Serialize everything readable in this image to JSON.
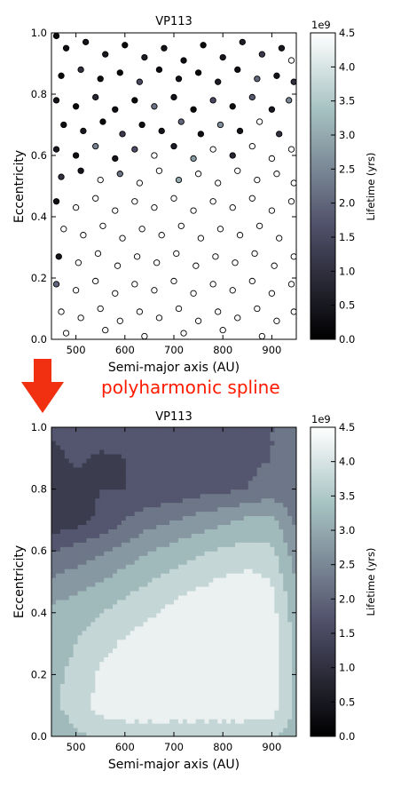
{
  "annotation": "polyharmonic spline",
  "colormap": {
    "name": "bone",
    "stops": [
      "#000000",
      "#51516b",
      "#a6c2c2",
      "#ffffff"
    ]
  },
  "arrow_color": "#f03010",
  "chart_data": [
    {
      "type": "scatter",
      "title": "VP113",
      "xlabel": "Semi-major axis (AU)",
      "ylabel": "Eccentricity",
      "xlim": [
        450,
        950
      ],
      "ylim": [
        0.0,
        1.0
      ],
      "xticks": [
        "500",
        "600",
        "700",
        "800",
        "900"
      ],
      "yticks": [
        "0.0",
        "0.2",
        "0.4",
        "0.6",
        "0.8",
        "1.0"
      ],
      "colorbar": {
        "label": "Lifetime (yrs)",
        "exponent": "1e9",
        "range": [
          0.0,
          4.5
        ],
        "ticks": [
          "0.0",
          "0.5",
          "1.0",
          "1.5",
          "2.0",
          "2.5",
          "3.0",
          "3.5",
          "4.0",
          "4.5"
        ]
      },
      "points": [
        {
          "x": 460,
          "y": 0.99,
          "c": 0.2
        },
        {
          "x": 480,
          "y": 0.95,
          "c": 0.3
        },
        {
          "x": 520,
          "y": 0.97,
          "c": 0.4
        },
        {
          "x": 560,
          "y": 0.93,
          "c": 0.5
        },
        {
          "x": 600,
          "y": 0.96,
          "c": 0.2
        },
        {
          "x": 640,
          "y": 0.92,
          "c": 0.6
        },
        {
          "x": 680,
          "y": 0.95,
          "c": 0.4
        },
        {
          "x": 720,
          "y": 0.91,
          "c": 0.3
        },
        {
          "x": 760,
          "y": 0.96,
          "c": 0.2
        },
        {
          "x": 800,
          "y": 0.92,
          "c": 0.5
        },
        {
          "x": 840,
          "y": 0.97,
          "c": 0.6
        },
        {
          "x": 880,
          "y": 0.93,
          "c": 1.2
        },
        {
          "x": 920,
          "y": 0.95,
          "c": 0.5
        },
        {
          "x": 940,
          "y": 0.91,
          "c": 4.5
        },
        {
          "x": 470,
          "y": 0.86,
          "c": 0.2
        },
        {
          "x": 510,
          "y": 0.88,
          "c": 1.0
        },
        {
          "x": 550,
          "y": 0.85,
          "c": 0.3
        },
        {
          "x": 590,
          "y": 0.87,
          "c": 0.2
        },
        {
          "x": 630,
          "y": 0.84,
          "c": 1.5
        },
        {
          "x": 670,
          "y": 0.88,
          "c": 0.3
        },
        {
          "x": 710,
          "y": 0.85,
          "c": 0.4
        },
        {
          "x": 750,
          "y": 0.87,
          "c": 0.2
        },
        {
          "x": 790,
          "y": 0.84,
          "c": 0.6
        },
        {
          "x": 830,
          "y": 0.88,
          "c": 0.3
        },
        {
          "x": 870,
          "y": 0.85,
          "c": 2.0
        },
        {
          "x": 910,
          "y": 0.86,
          "c": 0.4
        },
        {
          "x": 945,
          "y": 0.84,
          "c": 1.0
        },
        {
          "x": 460,
          "y": 0.78,
          "c": 0.4
        },
        {
          "x": 500,
          "y": 0.76,
          "c": 0.2
        },
        {
          "x": 540,
          "y": 0.79,
          "c": 0.8
        },
        {
          "x": 580,
          "y": 0.75,
          "c": 0.3
        },
        {
          "x": 620,
          "y": 0.78,
          "c": 0.2
        },
        {
          "x": 660,
          "y": 0.76,
          "c": 2.2
        },
        {
          "x": 700,
          "y": 0.79,
          "c": 0.4
        },
        {
          "x": 740,
          "y": 0.75,
          "c": 0.2
        },
        {
          "x": 780,
          "y": 0.78,
          "c": 1.5
        },
        {
          "x": 820,
          "y": 0.76,
          "c": 0.3
        },
        {
          "x": 860,
          "y": 0.79,
          "c": 1.8
        },
        {
          "x": 900,
          "y": 0.75,
          "c": 0.5
        },
        {
          "x": 935,
          "y": 0.78,
          "c": 2.5
        },
        {
          "x": 475,
          "y": 0.7,
          "c": 0.3
        },
        {
          "x": 515,
          "y": 0.68,
          "c": 0.5
        },
        {
          "x": 555,
          "y": 0.71,
          "c": 0.2
        },
        {
          "x": 595,
          "y": 0.67,
          "c": 1.2
        },
        {
          "x": 635,
          "y": 0.7,
          "c": 0.3
        },
        {
          "x": 675,
          "y": 0.68,
          "c": 0.4
        },
        {
          "x": 715,
          "y": 0.71,
          "c": 2.0
        },
        {
          "x": 755,
          "y": 0.67,
          "c": 0.3
        },
        {
          "x": 795,
          "y": 0.7,
          "c": 2.6
        },
        {
          "x": 835,
          "y": 0.68,
          "c": 0.4
        },
        {
          "x": 875,
          "y": 0.71,
          "c": 4.5
        },
        {
          "x": 915,
          "y": 0.67,
          "c": 1.0
        },
        {
          "x": 460,
          "y": 0.62,
          "c": 0.5
        },
        {
          "x": 500,
          "y": 0.6,
          "c": 0.3
        },
        {
          "x": 540,
          "y": 0.63,
          "c": 2.4
        },
        {
          "x": 580,
          "y": 0.59,
          "c": 0.4
        },
        {
          "x": 620,
          "y": 0.62,
          "c": 1.6
        },
        {
          "x": 660,
          "y": 0.6,
          "c": 4.5
        },
        {
          "x": 700,
          "y": 0.63,
          "c": 0.6
        },
        {
          "x": 740,
          "y": 0.59,
          "c": 2.8
        },
        {
          "x": 780,
          "y": 0.62,
          "c": 4.5
        },
        {
          "x": 820,
          "y": 0.6,
          "c": 0.8
        },
        {
          "x": 860,
          "y": 0.63,
          "c": 4.5
        },
        {
          "x": 900,
          "y": 0.59,
          "c": 4.5
        },
        {
          "x": 940,
          "y": 0.62,
          "c": 4.5
        },
        {
          "x": 470,
          "y": 0.53,
          "c": 1.0
        },
        {
          "x": 510,
          "y": 0.55,
          "c": 0.4
        },
        {
          "x": 550,
          "y": 0.52,
          "c": 4.5
        },
        {
          "x": 590,
          "y": 0.54,
          "c": 2.2
        },
        {
          "x": 630,
          "y": 0.51,
          "c": 4.5
        },
        {
          "x": 670,
          "y": 0.55,
          "c": 4.5
        },
        {
          "x": 710,
          "y": 0.52,
          "c": 3.0
        },
        {
          "x": 750,
          "y": 0.54,
          "c": 4.5
        },
        {
          "x": 790,
          "y": 0.51,
          "c": 4.5
        },
        {
          "x": 830,
          "y": 0.55,
          "c": 4.5
        },
        {
          "x": 870,
          "y": 0.52,
          "c": 4.5
        },
        {
          "x": 910,
          "y": 0.54,
          "c": 4.5
        },
        {
          "x": 945,
          "y": 0.51,
          "c": 4.5
        },
        {
          "x": 460,
          "y": 0.45,
          "c": 0.3
        },
        {
          "x": 500,
          "y": 0.43,
          "c": 4.5
        },
        {
          "x": 540,
          "y": 0.46,
          "c": 4.5
        },
        {
          "x": 580,
          "y": 0.42,
          "c": 4.5
        },
        {
          "x": 620,
          "y": 0.45,
          "c": 4.5
        },
        {
          "x": 660,
          "y": 0.43,
          "c": 4.5
        },
        {
          "x": 700,
          "y": 0.46,
          "c": 4.5
        },
        {
          "x": 740,
          "y": 0.42,
          "c": 4.5
        },
        {
          "x": 780,
          "y": 0.45,
          "c": 4.5
        },
        {
          "x": 820,
          "y": 0.43,
          "c": 4.5
        },
        {
          "x": 860,
          "y": 0.46,
          "c": 4.5
        },
        {
          "x": 900,
          "y": 0.42,
          "c": 4.5
        },
        {
          "x": 940,
          "y": 0.45,
          "c": 4.5
        },
        {
          "x": 475,
          "y": 0.36,
          "c": 4.5
        },
        {
          "x": 515,
          "y": 0.34,
          "c": 4.5
        },
        {
          "x": 555,
          "y": 0.37,
          "c": 4.5
        },
        {
          "x": 595,
          "y": 0.33,
          "c": 4.5
        },
        {
          "x": 635,
          "y": 0.36,
          "c": 4.5
        },
        {
          "x": 675,
          "y": 0.34,
          "c": 4.5
        },
        {
          "x": 715,
          "y": 0.37,
          "c": 4.5
        },
        {
          "x": 755,
          "y": 0.33,
          "c": 4.5
        },
        {
          "x": 795,
          "y": 0.36,
          "c": 4.5
        },
        {
          "x": 835,
          "y": 0.34,
          "c": 4.5
        },
        {
          "x": 875,
          "y": 0.37,
          "c": 4.5
        },
        {
          "x": 915,
          "y": 0.33,
          "c": 4.5
        },
        {
          "x": 465,
          "y": 0.27,
          "c": 0.4
        },
        {
          "x": 505,
          "y": 0.25,
          "c": 4.5
        },
        {
          "x": 545,
          "y": 0.28,
          "c": 4.5
        },
        {
          "x": 585,
          "y": 0.24,
          "c": 4.5
        },
        {
          "x": 625,
          "y": 0.27,
          "c": 4.5
        },
        {
          "x": 665,
          "y": 0.25,
          "c": 4.5
        },
        {
          "x": 705,
          "y": 0.28,
          "c": 4.5
        },
        {
          "x": 745,
          "y": 0.24,
          "c": 4.5
        },
        {
          "x": 785,
          "y": 0.27,
          "c": 4.5
        },
        {
          "x": 825,
          "y": 0.25,
          "c": 4.5
        },
        {
          "x": 865,
          "y": 0.28,
          "c": 4.5
        },
        {
          "x": 905,
          "y": 0.24,
          "c": 4.5
        },
        {
          "x": 945,
          "y": 0.27,
          "c": 4.5
        },
        {
          "x": 460,
          "y": 0.18,
          "c": 2.0
        },
        {
          "x": 500,
          "y": 0.16,
          "c": 4.5
        },
        {
          "x": 540,
          "y": 0.19,
          "c": 4.5
        },
        {
          "x": 580,
          "y": 0.15,
          "c": 4.5
        },
        {
          "x": 620,
          "y": 0.18,
          "c": 4.5
        },
        {
          "x": 660,
          "y": 0.16,
          "c": 4.5
        },
        {
          "x": 700,
          "y": 0.19,
          "c": 4.5
        },
        {
          "x": 740,
          "y": 0.15,
          "c": 4.5
        },
        {
          "x": 780,
          "y": 0.18,
          "c": 4.5
        },
        {
          "x": 820,
          "y": 0.16,
          "c": 4.5
        },
        {
          "x": 860,
          "y": 0.19,
          "c": 4.5
        },
        {
          "x": 900,
          "y": 0.15,
          "c": 4.5
        },
        {
          "x": 940,
          "y": 0.18,
          "c": 4.5
        },
        {
          "x": 470,
          "y": 0.09,
          "c": 4.5
        },
        {
          "x": 510,
          "y": 0.07,
          "c": 4.5
        },
        {
          "x": 550,
          "y": 0.1,
          "c": 4.5
        },
        {
          "x": 590,
          "y": 0.06,
          "c": 4.5
        },
        {
          "x": 630,
          "y": 0.09,
          "c": 4.5
        },
        {
          "x": 670,
          "y": 0.07,
          "c": 4.5
        },
        {
          "x": 710,
          "y": 0.1,
          "c": 4.5
        },
        {
          "x": 750,
          "y": 0.06,
          "c": 4.5
        },
        {
          "x": 790,
          "y": 0.09,
          "c": 4.5
        },
        {
          "x": 830,
          "y": 0.07,
          "c": 4.5
        },
        {
          "x": 870,
          "y": 0.1,
          "c": 4.5
        },
        {
          "x": 910,
          "y": 0.06,
          "c": 4.5
        },
        {
          "x": 945,
          "y": 0.09,
          "c": 4.5
        },
        {
          "x": 480,
          "y": 0.02,
          "c": 4.5
        },
        {
          "x": 560,
          "y": 0.03,
          "c": 4.5
        },
        {
          "x": 640,
          "y": 0.01,
          "c": 4.5
        },
        {
          "x": 720,
          "y": 0.02,
          "c": 4.5
        },
        {
          "x": 800,
          "y": 0.03,
          "c": 4.5
        },
        {
          "x": 880,
          "y": 0.01,
          "c": 4.5
        }
      ]
    },
    {
      "type": "heatmap",
      "title": "VP113",
      "xlabel": "Semi-major axis (AU)",
      "ylabel": "Eccentricity",
      "xlim": [
        450,
        950
      ],
      "ylim": [
        0.0,
        1.0
      ],
      "xticks": [
        "500",
        "600",
        "700",
        "800",
        "900"
      ],
      "yticks": [
        "0.0",
        "0.2",
        "0.4",
        "0.6",
        "0.8",
        "1.0"
      ],
      "colorbar": {
        "label": "Lifetime (yrs)",
        "exponent": "1e9",
        "range": [
          0.0,
          4.5
        ],
        "ticks": [
          "0.0",
          "0.5",
          "1.0",
          "1.5",
          "2.0",
          "2.5",
          "3.0",
          "3.5",
          "4.0",
          "4.5"
        ]
      },
      "levels": [
        0.0,
        0.5,
        1.0,
        1.5,
        2.0,
        2.5,
        3.0,
        3.5,
        4.0,
        4.5
      ],
      "x": [
        450,
        500,
        550,
        600,
        650,
        700,
        750,
        800,
        850,
        900,
        950
      ],
      "y": [
        0.0,
        0.1,
        0.2,
        0.3,
        0.4,
        0.5,
        0.6,
        0.7,
        0.8,
        0.9,
        1.0
      ],
      "z": [
        [
          3.2,
          3.4,
          3.6,
          3.6,
          3.6,
          3.6,
          3.6,
          3.6,
          3.6,
          3.5,
          3.3
        ],
        [
          3.4,
          3.7,
          4.2,
          4.4,
          4.4,
          4.4,
          4.4,
          4.4,
          4.4,
          4.3,
          3.4
        ],
        [
          3.4,
          3.6,
          4.1,
          4.4,
          4.4,
          4.4,
          4.4,
          4.4,
          4.4,
          4.3,
          3.4
        ],
        [
          3.3,
          3.5,
          3.8,
          4.1,
          4.4,
          4.4,
          4.4,
          4.4,
          4.4,
          4.3,
          3.3
        ],
        [
          3.2,
          3.3,
          3.5,
          3.7,
          3.9,
          4.2,
          4.4,
          4.4,
          4.4,
          4.2,
          3.2
        ],
        [
          2.6,
          2.8,
          3.0,
          3.3,
          3.5,
          3.7,
          3.9,
          4.1,
          4.2,
          4.0,
          3.0
        ],
        [
          2.0,
          2.2,
          2.4,
          2.7,
          3.0,
          3.2,
          3.4,
          3.6,
          3.7,
          3.6,
          2.7
        ],
        [
          1.1,
          1.3,
          1.6,
          2.0,
          2.3,
          2.5,
          2.7,
          2.9,
          3.1,
          3.2,
          2.4
        ],
        [
          1.1,
          1.3,
          1.5,
          1.5,
          1.6,
          1.6,
          1.8,
          1.9,
          2.0,
          2.2,
          2.0
        ],
        [
          1.3,
          1.6,
          1.4,
          1.5,
          1.7,
          1.6,
          1.7,
          1.8,
          1.9,
          2.0,
          2.0
        ],
        [
          1.6,
          1.8,
          1.8,
          1.8,
          1.9,
          1.9,
          1.9,
          1.9,
          1.9,
          2.0,
          2.0
        ]
      ]
    }
  ]
}
